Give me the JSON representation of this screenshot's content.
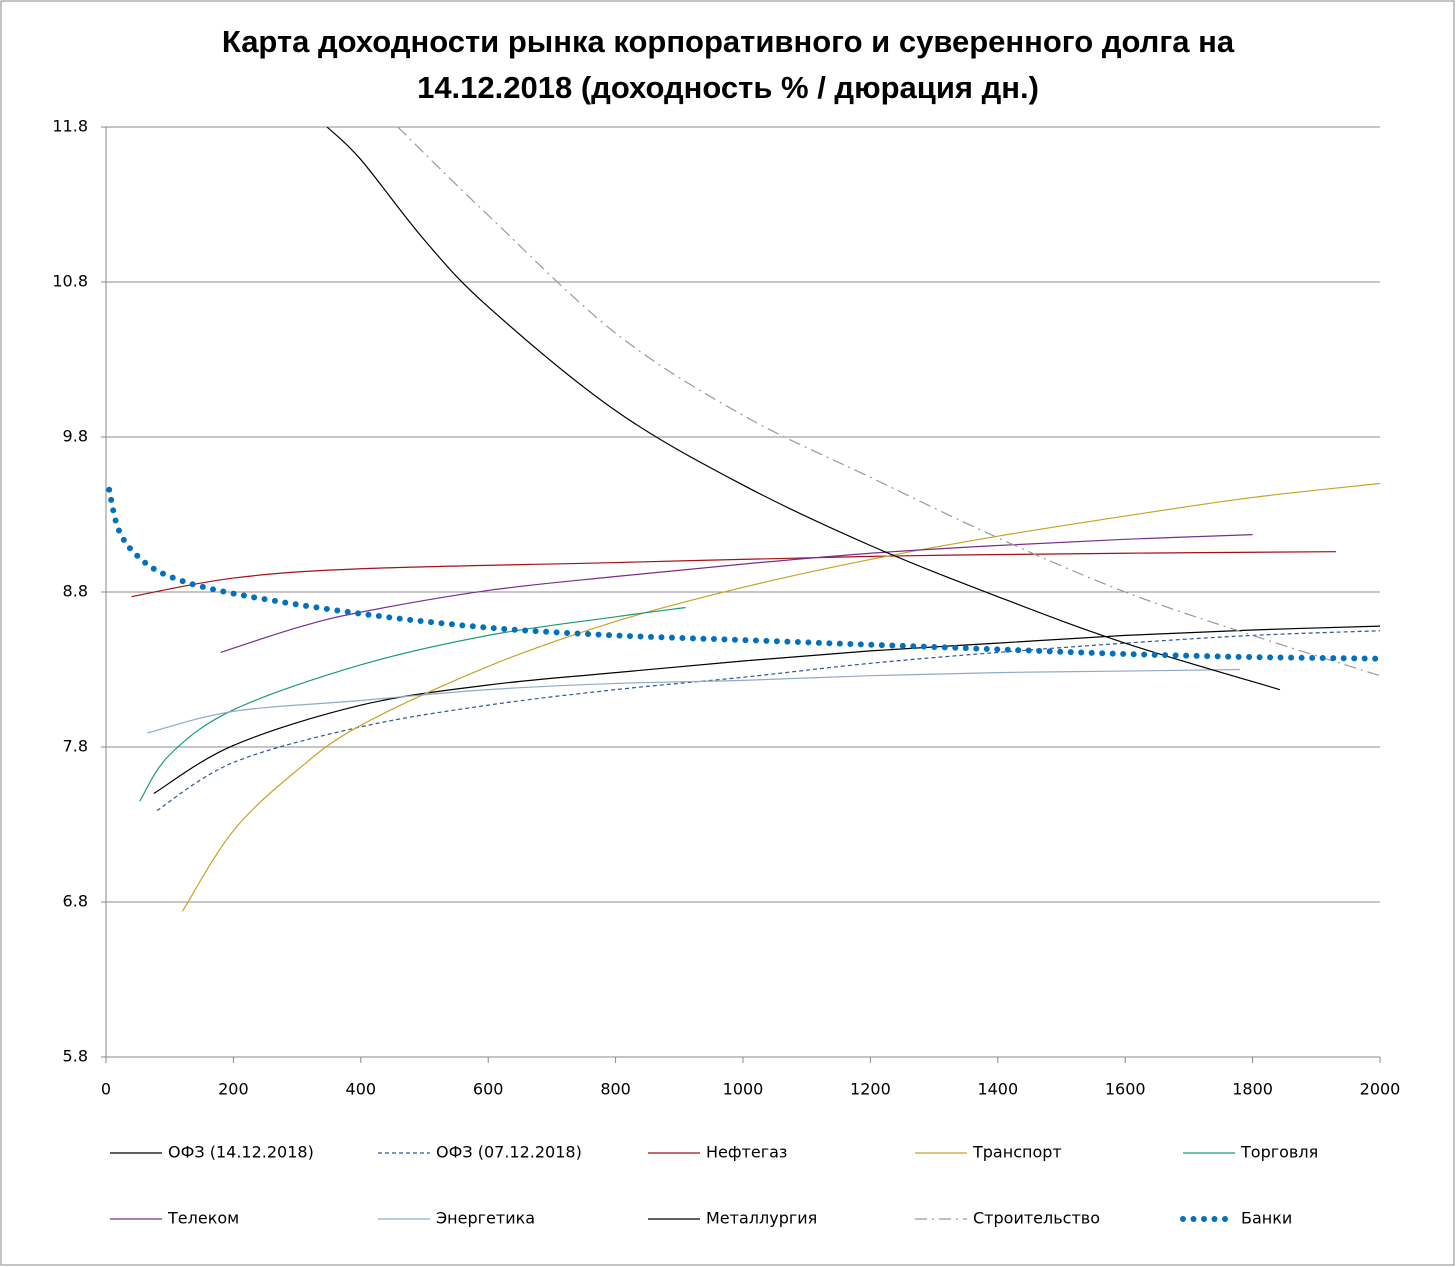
{
  "chart_data": {
    "type": "line",
    "title": [
      "Карта доходности рынка корпоративного и суверенного долга на",
      "14.12.2018 (доходность % / дюрация дн.)"
    ],
    "xlim": [
      0,
      2000
    ],
    "xticks": [
      0,
      200,
      400,
      600,
      800,
      1000,
      1200,
      1400,
      1600,
      1800,
      2000
    ],
    "ylim": [
      5.8,
      11.8
    ],
    "yticks": [
      5.8,
      6.8,
      7.8,
      8.8,
      9.8,
      10.8,
      11.8
    ],
    "grid": true,
    "series": [
      {
        "name": "ОФЗ (14.12.2018)",
        "color": "#000000",
        "style": "solid",
        "x": [
          75,
          200,
          400,
          600,
          800,
          1000,
          1200,
          1400,
          1600,
          1800,
          2000
        ],
        "values": [
          7.5,
          7.81,
          8.07,
          8.2,
          8.28,
          8.355,
          8.42,
          8.47,
          8.52,
          8.555,
          8.58
        ]
      },
      {
        "name": "ОФЗ (07.12.2018)",
        "color": "#2f5597",
        "style": "dashed",
        "x": [
          80,
          200,
          400,
          600,
          800,
          1000,
          1200,
          1400,
          1600,
          1800,
          2000
        ],
        "values": [
          7.39,
          7.7,
          7.93,
          8.07,
          8.17,
          8.25,
          8.34,
          8.41,
          8.47,
          8.52,
          8.55
        ]
      },
      {
        "name": "Нефтегаз",
        "color": "#a50f15",
        "style": "solid",
        "x": [
          40,
          200,
          400,
          800,
          1200,
          1600,
          1931
        ],
        "values": [
          8.77,
          8.89,
          8.95,
          8.99,
          9.03,
          9.05,
          9.06
        ]
      },
      {
        "name": "Транспорт",
        "color": "#c9a227",
        "style": "solid",
        "x": [
          120,
          200,
          300,
          400,
          600,
          800,
          1000,
          1200,
          1400,
          1600,
          1800,
          2000
        ],
        "values": [
          6.74,
          7.26,
          7.65,
          7.94,
          8.32,
          8.61,
          8.83,
          9.01,
          9.16,
          9.29,
          9.41,
          9.5
        ]
      },
      {
        "name": "Торговля",
        "color": "#1a9a7a",
        "style": "solid",
        "x": [
          53,
          100,
          200,
          400,
          600,
          800,
          910
        ],
        "values": [
          7.45,
          7.75,
          8.04,
          8.33,
          8.52,
          8.64,
          8.7
        ]
      },
      {
        "name": "Телеком",
        "color": "#7b2d8e",
        "style": "solid",
        "x": [
          180,
          300,
          400,
          600,
          800,
          1000,
          1200,
          1400,
          1600,
          1800
        ],
        "values": [
          8.41,
          8.57,
          8.67,
          8.81,
          8.9,
          8.98,
          9.05,
          9.1,
          9.14,
          9.17
        ]
      },
      {
        "name": "Энергетика",
        "color": "#8fa9c9",
        "style": "solid",
        "x": [
          65,
          200,
          400,
          600,
          800,
          1000,
          1200,
          1400,
          1600,
          1780
        ],
        "values": [
          7.89,
          8.03,
          8.1,
          8.17,
          8.21,
          8.23,
          8.26,
          8.28,
          8.29,
          8.3
        ]
      },
      {
        "name": "Металлургия",
        "color": "#000000",
        "style": "solid",
        "x": [
          347,
          400,
          500,
          600,
          800,
          1000,
          1200,
          1400,
          1600,
          1843
        ],
        "values": [
          11.8,
          11.59,
          11.07,
          10.64,
          9.97,
          9.49,
          9.1,
          8.77,
          8.47,
          8.17
        ]
      },
      {
        "name": "Строительство",
        "color": "#999999",
        "style": "dashdot",
        "x": [
          458,
          600,
          800,
          1000,
          1200,
          1400,
          1600,
          1800,
          2000
        ],
        "values": [
          11.8,
          11.23,
          10.47,
          9.94,
          9.54,
          9.15,
          8.8,
          8.52,
          8.26
        ]
      },
      {
        "name": "Банки",
        "color": "#0070c0",
        "style": "dotted",
        "x": [
          5,
          20,
          50,
          100,
          200,
          400,
          600,
          800,
          1000,
          1200,
          1400,
          1600,
          1800,
          2000
        ],
        "values": [
          9.46,
          9.2,
          9.03,
          8.9,
          8.79,
          8.66,
          8.57,
          8.52,
          8.49,
          8.46,
          8.43,
          8.4,
          8.38,
          8.37
        ]
      }
    ]
  }
}
